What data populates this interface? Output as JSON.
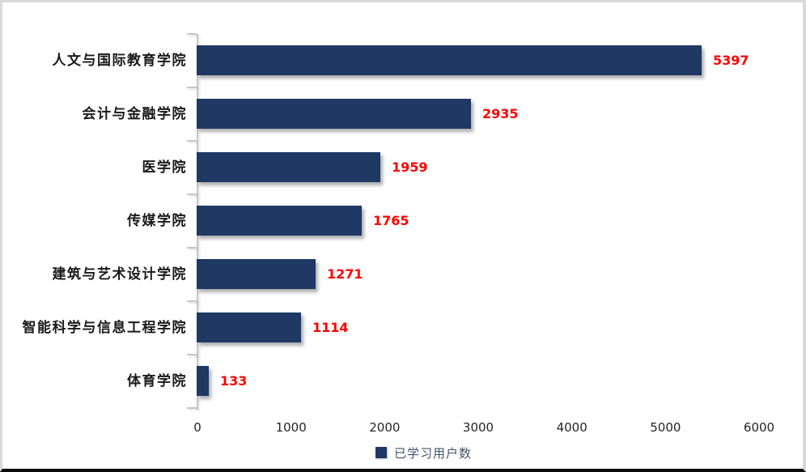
{
  "chart_data": {
    "type": "bar",
    "orientation": "horizontal",
    "title": "",
    "xlabel": "",
    "ylabel": "",
    "categories": [
      "人文与国际教育学院",
      "会计与金融学院",
      "医学院",
      "传媒学院",
      "建筑与艺术设计学院",
      "智能科学与信息工程学院",
      "体育学院"
    ],
    "series": [
      {
        "name": "已学习用户数",
        "values": [
          5397,
          2935,
          1959,
          1765,
          1271,
          1114,
          133
        ]
      }
    ],
    "data_labels_shown": true,
    "xlim": [
      0,
      6000
    ],
    "x_ticks": [
      "0",
      "1000",
      "2000",
      "3000",
      "4000",
      "5000",
      "6000"
    ],
    "grid": false,
    "legend_position": "bottom-center",
    "colors": {
      "bar": "#1f3864",
      "data_label": "#ff0000",
      "axis_line": "#c6c6c6",
      "axis_text": "#262626",
      "category_text": "#1a1a1a",
      "legend_text": "#44546a",
      "frame_border": "#d9d9d9",
      "bottom_edge": "#0a0a0a"
    }
  }
}
